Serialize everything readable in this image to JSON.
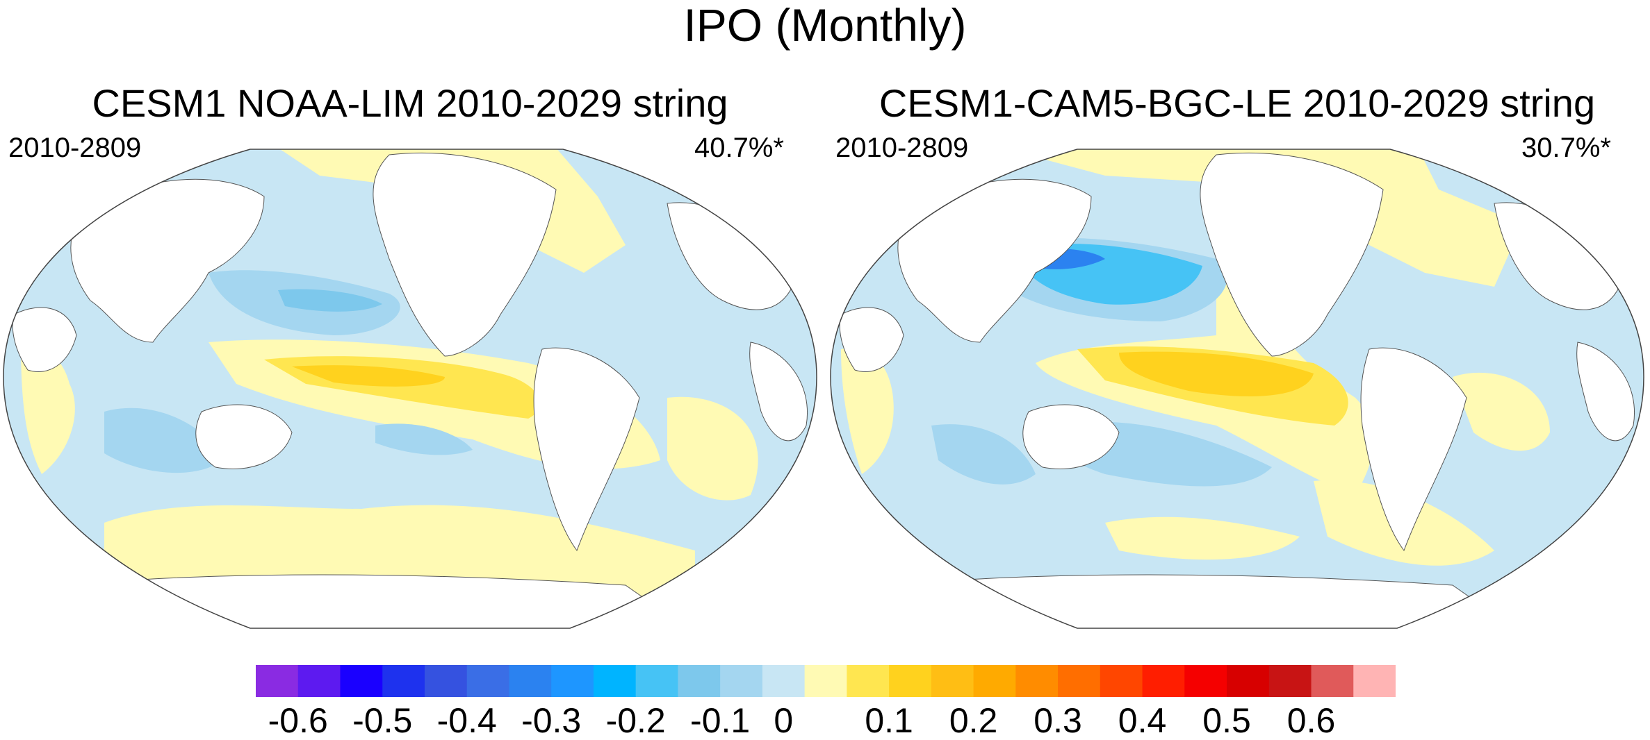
{
  "title": "IPO (Monthly)",
  "panels": [
    {
      "title": "CESM1 NOAA-LIM 2010-2029 string",
      "period": "2010-2809",
      "variance": "40.7%*"
    },
    {
      "title": "CESM1-CAM5-BGC-LE 2010-2029 string",
      "period": "2010-2809",
      "variance": "30.7%*"
    }
  ],
  "colorbar": {
    "colors": [
      "#8a2be2",
      "#5d1af0",
      "#1a00ff",
      "#1e32ee",
      "#3552e0",
      "#3a6ee6",
      "#2b82f0",
      "#1e96ff",
      "#00b4ff",
      "#46c3f5",
      "#7dc8ec",
      "#a4d6f0",
      "#c8e6f4",
      "#fffab4",
      "#ffe650",
      "#ffd21e",
      "#ffbe14",
      "#ffaa00",
      "#ff8c00",
      "#ff6e00",
      "#ff4600",
      "#ff1e00",
      "#f50000",
      "#d70000",
      "#c81414",
      "#e05a5a",
      "#ffb4b4"
    ],
    "tick_labels": [
      "-0.6",
      "-0.5",
      "-0.4",
      "-0.3",
      "-0.2",
      "-0.1",
      "0",
      "0.1",
      "0.2",
      "0.3",
      "0.4",
      "0.5",
      "0.6"
    ],
    "tick_values": [
      -0.6,
      -0.5,
      -0.4,
      -0.3,
      -0.2,
      -0.1,
      0,
      0.1,
      0.2,
      0.3,
      0.4,
      0.5,
      0.6
    ]
  }
}
